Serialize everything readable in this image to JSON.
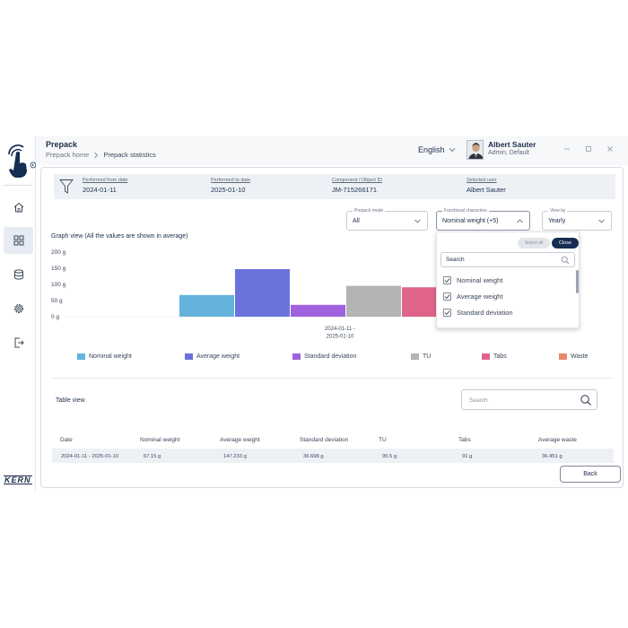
{
  "header": {
    "title": "Prepack",
    "breadcrumb": [
      "Prepack home",
      "Prepack statistics"
    ],
    "language": "English",
    "user_name": "Albert Sauter",
    "user_role": "Admin, Default"
  },
  "sidebar": {
    "items": [
      "home-icon",
      "grid-icon",
      "database-icon",
      "gear-icon",
      "logout-icon"
    ],
    "active_index": 1,
    "brand": "KERN"
  },
  "info": {
    "performed_from_label": "Performed from date",
    "performed_from_value": "2024-01-11",
    "performed_to_label": "Performed to date",
    "performed_to_value": "2025-01-10",
    "component_label": "Component / Object ID",
    "component_value": "JM-715266171",
    "user_label": "Selected user",
    "user_value": "Albert Sauter"
  },
  "filters": {
    "prepack_mode_label": "Prepack mode",
    "prepack_mode_value": "All",
    "functional_label": "Functional characters",
    "functional_value": "Nominal weight (+5)",
    "view_by_label": "View by",
    "view_by_value": "Yearly"
  },
  "graph_title": "Graph view (All the values are shown in average)",
  "chart_data": {
    "type": "bar",
    "categories": [
      "2024-01-11 - 2025-01-10"
    ],
    "category_lines": [
      "2024-01-11 -",
      "2025-01-10"
    ],
    "series": [
      {
        "name": "Nominal weight",
        "values": [
          67.15
        ],
        "color": "#64b3dc"
      },
      {
        "name": "Average weight",
        "values": [
          147.233
        ],
        "color": "#6a72dc"
      },
      {
        "name": "Standard deviation",
        "values": [
          36.698
        ],
        "color": "#9f62dc"
      },
      {
        "name": "TU",
        "values": [
          95.5
        ],
        "color": "#b4b4b4"
      },
      {
        "name": "Tabs",
        "values": [
          91
        ],
        "color": "#e06489"
      },
      {
        "name": "Waste",
        "values": [
          36.451
        ],
        "color": "#e48a6a"
      }
    ],
    "y_ticks": [
      "200 g",
      "150 g",
      "100 g",
      "50 g",
      "0 g"
    ],
    "ylim": [
      0,
      200
    ],
    "legend_position": "bottom"
  },
  "table": {
    "title": "Table view",
    "search_placeholder": "Search",
    "columns": [
      "Date",
      "Nominal weight",
      "Average weight",
      "Standard deviation",
      "TU",
      "Tabs",
      "Average waste"
    ],
    "rows": [
      [
        "2024-01-11 - 2025-01-10",
        "67.15 g",
        "147.233 g",
        "36.698 g",
        "95.5 g",
        "91 g",
        "36.451 g"
      ]
    ]
  },
  "dropdown": {
    "select_all": "Select all",
    "close": "Close",
    "search_placeholder": "Search",
    "items": [
      "Nominal weight",
      "Average weight",
      "Standard deviation"
    ]
  },
  "back_label": "Back"
}
